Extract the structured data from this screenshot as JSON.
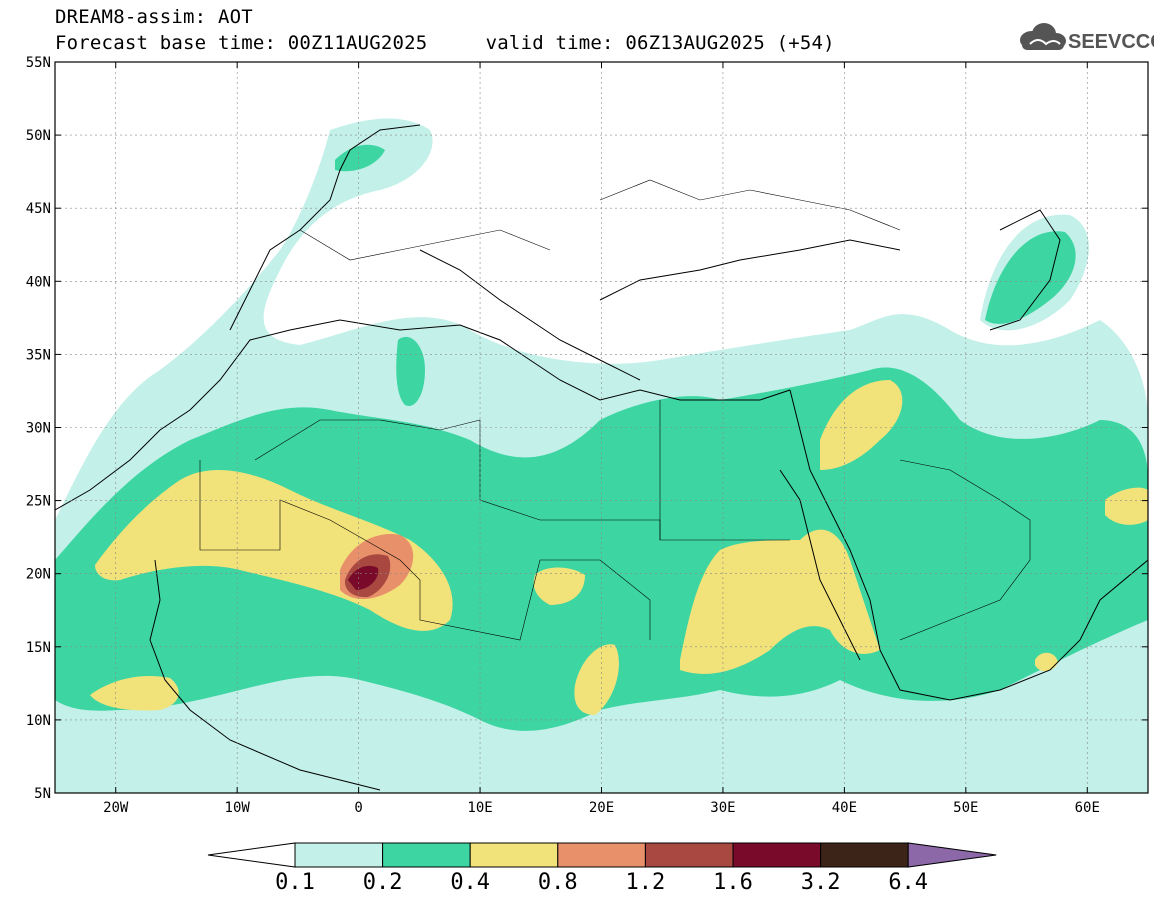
{
  "title": {
    "line1": "DREAM8-assim: AOT",
    "base_time": "Forecast base time: 00Z11AUG2025",
    "valid_time": "valid time: 06Z13AUG2025 (+54)"
  },
  "logo": {
    "text": "SEEVCCC",
    "icon": "cloud-icon"
  },
  "map": {
    "projection": "equirectangular",
    "lon_range": [
      -25,
      65
    ],
    "lat_range": [
      5,
      55
    ],
    "lat_ticks": [
      {
        "v": 55,
        "label": "55N"
      },
      {
        "v": 50,
        "label": "50N"
      },
      {
        "v": 45,
        "label": "45N"
      },
      {
        "v": 40,
        "label": "40N"
      },
      {
        "v": 35,
        "label": "35N"
      },
      {
        "v": 30,
        "label": "30N"
      },
      {
        "v": 25,
        "label": "25N"
      },
      {
        "v": 20,
        "label": "20N"
      },
      {
        "v": 15,
        "label": "15N"
      },
      {
        "v": 10,
        "label": "10N"
      },
      {
        "v": 5,
        "label": "5N"
      }
    ],
    "lon_ticks": [
      {
        "v": -20,
        "label": "20W"
      },
      {
        "v": -10,
        "label": "10W"
      },
      {
        "v": 0,
        "label": "0"
      },
      {
        "v": 10,
        "label": "10E"
      },
      {
        "v": 20,
        "label": "20E"
      },
      {
        "v": 30,
        "label": "30E"
      },
      {
        "v": 40,
        "label": "40E"
      },
      {
        "v": 50,
        "label": "50E"
      },
      {
        "v": 60,
        "label": "60E"
      }
    ],
    "grid": "dotted"
  },
  "colorbar": {
    "labels": [
      "0.1",
      "0.2",
      "0.4",
      "0.8",
      "1.2",
      "1.6",
      "3.2",
      "6.4"
    ],
    "colors": [
      "#ffffff",
      "#c3f0e8",
      "#3dd6a3",
      "#f2e27a",
      "#e8906a",
      "#a84840",
      "#7a0a2a",
      "#3c2418",
      "#8c68a8"
    ]
  }
}
